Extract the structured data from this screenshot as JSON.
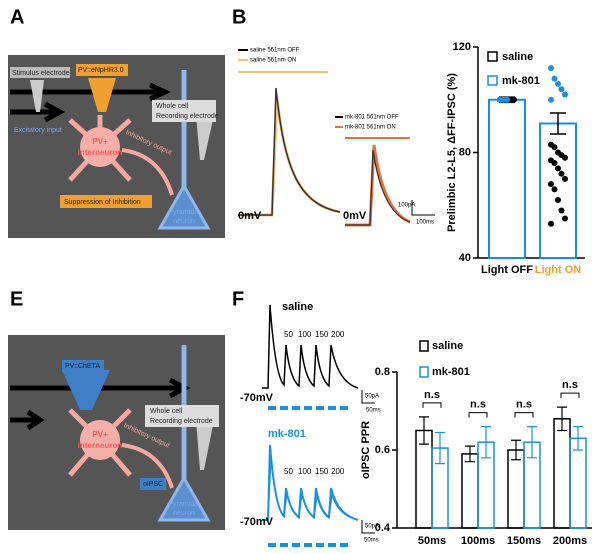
{
  "panels": {
    "a": "A",
    "b": "B",
    "e": "E",
    "f": "F"
  },
  "diagram_a": {
    "stimulus": "Stimulus electrode",
    "opsin": "PV::eNpHR3.0",
    "whole_cell": "Whole cell",
    "recording": "Recording electrode",
    "excitatory": "Excitatory input",
    "inhibitory": "Inhibitory output",
    "pv": "PV+",
    "interneuron": "interneuron",
    "pyramidal": "Pyramidal",
    "neuron": "neuron",
    "suppression": "Suppression of Inhibition"
  },
  "diagram_e": {
    "opsin": "PV::ChETA",
    "whole_cell": "Whole cell",
    "recording": "Recording electrode",
    "inhibitory": "Inhibitory output",
    "pv": "PV+",
    "interneuron": "interneuron",
    "oipsc": "oIPSC",
    "pyramidal": "Pyramidal",
    "neuron": "neuron"
  },
  "traces_b": {
    "legend_saline": [
      "saline 561nm OFF",
      "saline 561nm ON"
    ],
    "legend_mk": [
      "mk-801 561nm OFF",
      "mk-801 561nm ON"
    ],
    "label_left": "0mV",
    "label_right": "0mV",
    "scale_y": "100pA",
    "scale_x": "100ms"
  },
  "traces_f": {
    "saline": {
      "title": "saline",
      "intervals": [
        "50",
        "100",
        "150",
        "200"
      ],
      "holding": "-70mV",
      "scale_y": "50pA",
      "scale_x": "50ms"
    },
    "mk801": {
      "title": "mk-801",
      "intervals": [
        "50",
        "100",
        "150",
        "200"
      ],
      "holding": "-70mV",
      "scale_y": "50pA",
      "scale_x": "50ms"
    }
  },
  "chart_data": [
    {
      "type": "bar_scatter",
      "ylabel": "Prelimbic L2-L5, ΔFF-IPSC (%)",
      "categories": [
        "Light OFF",
        "Light ON"
      ],
      "category_colors": [
        "#000000",
        "#f0a030"
      ],
      "values": [
        100,
        91
      ],
      "errors": [
        1,
        4
      ],
      "bar_color": "#1a8fe0",
      "series": [
        {
          "name": "saline",
          "color": "#000000",
          "points": [
            [
              100,
              100,
              100,
              100,
              100,
              100
            ],
            [
              83,
              82,
              80,
              79,
              78,
              77,
              76,
              74,
              72,
              70,
              68,
              66,
              62,
              58,
              55,
              53
            ]
          ]
        },
        {
          "name": "mk-801",
          "color": "#1a8fe0",
          "points": [
            [
              100,
              100,
              100
            ],
            [
              112,
              108,
              106,
              104,
              102,
              100
            ]
          ]
        }
      ],
      "ylim": [
        40,
        120
      ],
      "yticks": [
        40,
        80,
        120
      ]
    },
    {
      "type": "grouped_bar",
      "ylabel": "oIPSC PPR",
      "categories": [
        "50ms",
        "100ms",
        "150ms",
        "200ms"
      ],
      "series": [
        {
          "name": "saline",
          "color": "#000000",
          "values": [
            0.65,
            0.59,
            0.6,
            0.68
          ],
          "errors": [
            0.035,
            0.02,
            0.025,
            0.03
          ]
        },
        {
          "name": "mk-801",
          "color": "#1a8fe0",
          "values": [
            0.605,
            0.62,
            0.62,
            0.63
          ],
          "errors": [
            0.04,
            0.04,
            0.04,
            0.03
          ]
        }
      ],
      "annotations": [
        "n.s",
        "n.s",
        "n.s",
        "n.s"
      ],
      "ylim": [
        0.4,
        0.8
      ],
      "yticks": [
        0.4,
        0.6,
        0.8
      ]
    }
  ]
}
